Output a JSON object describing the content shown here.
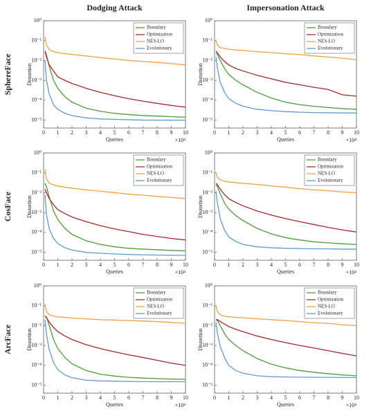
{
  "column_titles": [
    "Dodging Attack",
    "Impersonation Attack"
  ],
  "row_labels": [
    "SphereFace",
    "CosFace",
    "ArcFace"
  ],
  "chart_data": [
    {
      "type": "line",
      "log_y": true,
      "legend": "upper right",
      "x_label": "Queries",
      "y_label": "Distortion",
      "x_multiplier": "×10⁴",
      "xlim": [
        0,
        10
      ],
      "xticks": [
        0,
        1,
        2,
        3,
        4,
        5,
        6,
        7,
        8,
        9,
        10
      ],
      "ylim": [
        4e-06,
        1
      ],
      "yticks": [
        {
          "value": 1,
          "label": "10⁰"
        },
        {
          "value": 0.1,
          "label": "10⁻¹"
        },
        {
          "value": 0.01,
          "label": "10⁻²"
        },
        {
          "value": 0.001,
          "label": "10⁻³"
        },
        {
          "value": 0.0001,
          "label": "10⁻⁴"
        },
        {
          "value": 1e-05,
          "label": "10⁻⁵"
        }
      ],
      "x": [
        0.1,
        0.2,
        0.4,
        0.7,
        1,
        1.5,
        2,
        3,
        4,
        5,
        6,
        7,
        8,
        9,
        10
      ],
      "series": [
        {
          "name": "Boundary",
          "color": "#4e9a3a",
          "values": [
            0.03,
            0.02,
            0.005,
            0.001,
            0.0004,
            0.00015,
            8e-05,
            4e-05,
            2.8e-05,
            2.2e-05,
            1.9e-05,
            1.7e-05,
            1.6e-05,
            1.5e-05,
            1.4e-05
          ]
        },
        {
          "name": "Optimization",
          "color": "#a3282b",
          "values": [
            0.03,
            0.015,
            0.006,
            0.003,
            0.0015,
            0.001,
            0.0007,
            0.0004,
            0.00025,
            0.00017,
            0.00012,
            9e-05,
            7e-05,
            5.5e-05,
            4.5e-05
          ]
        },
        {
          "name": "NES-LO",
          "color": "#f0a040",
          "values": [
            0.15,
            0.06,
            0.035,
            0.028,
            0.025,
            0.022,
            0.02,
            0.017,
            0.014,
            0.012,
            0.01,
            0.009,
            0.008,
            0.007,
            0.006
          ]
        },
        {
          "name": "Evolutionary",
          "color": "#5b9bd5",
          "values": [
            0.01,
            0.001,
            0.0002,
            6e-05,
            3.5e-05,
            2.2e-05,
            1.7e-05,
            1.3e-05,
            1.15e-05,
            1.1e-05,
            1.05e-05,
            1e-05,
            1e-05,
            1e-05,
            1e-05
          ]
        }
      ]
    },
    {
      "type": "line",
      "log_y": true,
      "legend": "upper right",
      "x_label": "Queries",
      "y_label": "Distortion",
      "x_multiplier": "×10⁴",
      "xlim": [
        0,
        10
      ],
      "xticks": [
        0,
        1,
        2,
        3,
        4,
        5,
        6,
        7,
        8,
        9,
        10
      ],
      "ylim": [
        4e-06,
        1
      ],
      "yticks": [
        {
          "value": 1,
          "label": "10⁰"
        },
        {
          "value": 0.1,
          "label": "10⁻¹"
        },
        {
          "value": 0.01,
          "label": "10⁻²"
        },
        {
          "value": 0.001,
          "label": "10⁻³"
        },
        {
          "value": 0.0001,
          "label": "10⁻⁴"
        },
        {
          "value": 1e-05,
          "label": "10⁻⁵"
        }
      ],
      "x": [
        0.1,
        0.2,
        0.4,
        0.7,
        1,
        1.5,
        2,
        3,
        4,
        5,
        6,
        7,
        8,
        9,
        10
      ],
      "series": [
        {
          "name": "Boundary",
          "color": "#4e9a3a",
          "values": [
            0.025,
            0.02,
            0.01,
            0.004,
            0.002,
            0.001,
            0.0006,
            0.00025,
            0.00013,
            8e-05,
            6e-05,
            5e-05,
            4.3e-05,
            3.8e-05,
            3.5e-05
          ]
        },
        {
          "name": "Optimization",
          "color": "#a3282b",
          "values": [
            0.03,
            0.025,
            0.015,
            0.009,
            0.006,
            0.004,
            0.003,
            0.0018,
            0.0012,
            0.0008,
            0.0006,
            0.00045,
            0.00035,
            0.00019,
            0.00016
          ]
        },
        {
          "name": "NES-LO",
          "color": "#f0a040",
          "values": [
            0.1,
            0.06,
            0.045,
            0.04,
            0.037,
            0.034,
            0.032,
            0.028,
            0.025,
            0.022,
            0.02,
            0.017,
            0.015,
            0.013,
            0.011
          ]
        },
        {
          "name": "Evolutionary",
          "color": "#5b9bd5",
          "values": [
            0.015,
            0.004,
            0.0008,
            0.00025,
            0.00012,
            7e-05,
            5e-05,
            3.5e-05,
            3e-05,
            2.7e-05,
            2.5e-05,
            2.4e-05,
            2.35e-05,
            2.3e-05,
            2.3e-05
          ]
        }
      ]
    },
    {
      "type": "line",
      "log_y": true,
      "legend": "upper right",
      "x_label": "Queries",
      "y_label": "Distortion",
      "x_multiplier": "×10⁴",
      "xlim": [
        0,
        10
      ],
      "xticks": [
        0,
        1,
        2,
        3,
        4,
        5,
        6,
        7,
        8,
        9,
        10
      ],
      "ylim": [
        4e-06,
        1
      ],
      "yticks": [
        {
          "value": 1,
          "label": "10⁰"
        },
        {
          "value": 0.1,
          "label": "10⁻¹"
        },
        {
          "value": 0.01,
          "label": "10⁻²"
        },
        {
          "value": 0.001,
          "label": "10⁻³"
        },
        {
          "value": 0.0001,
          "label": "10⁻⁴"
        },
        {
          "value": 1e-05,
          "label": "10⁻⁵"
        }
      ],
      "x": [
        0.1,
        0.2,
        0.4,
        0.7,
        1,
        1.5,
        2,
        3,
        4,
        5,
        6,
        7,
        8,
        9,
        10
      ],
      "series": [
        {
          "name": "Boundary",
          "color": "#4e9a3a",
          "values": [
            0.03,
            0.02,
            0.006,
            0.0012,
            0.00045,
            0.00016,
            8e-05,
            3.8e-05,
            2.5e-05,
            1.9e-05,
            1.6e-05,
            1.45e-05,
            1.35e-05,
            1.25e-05,
            1.2e-05
          ]
        },
        {
          "name": "Optimization",
          "color": "#a3282b",
          "values": [
            0.015,
            0.01,
            0.005,
            0.0025,
            0.0014,
            0.0009,
            0.0006,
            0.00035,
            0.00022,
            0.00015,
            0.00011,
            8e-05,
            6.3e-05,
            5e-05,
            4.2e-05
          ]
        },
        {
          "name": "NES-LO",
          "color": "#f0a040",
          "values": [
            0.15,
            0.05,
            0.03,
            0.025,
            0.022,
            0.019,
            0.017,
            0.014,
            0.012,
            0.01,
            0.0085,
            0.0075,
            0.0065,
            0.0058,
            0.005
          ]
        },
        {
          "name": "Evolutionary",
          "color": "#5b9bd5",
          "values": [
            0.008,
            0.0008,
            0.00015,
            5e-05,
            2.8e-05,
            1.7e-05,
            1.3e-05,
            1e-05,
            9e-06,
            8.3e-06,
            7.8e-06,
            7.5e-06,
            7.3e-06,
            7.2e-06,
            7.1e-06
          ]
        }
      ]
    },
    {
      "type": "line",
      "log_y": true,
      "legend": "upper right",
      "x_label": "Queries",
      "y_label": "Distortion",
      "x_multiplier": "×10⁴",
      "xlim": [
        0,
        10
      ],
      "xticks": [
        0,
        1,
        2,
        3,
        4,
        5,
        6,
        7,
        8,
        9,
        10
      ],
      "ylim": [
        4e-06,
        1
      ],
      "yticks": [
        {
          "value": 1,
          "label": "10⁰"
        },
        {
          "value": 0.1,
          "label": "10⁻¹"
        },
        {
          "value": 0.01,
          "label": "10⁻²"
        },
        {
          "value": 0.001,
          "label": "10⁻³"
        },
        {
          "value": 0.0001,
          "label": "10⁻⁴"
        },
        {
          "value": 1e-05,
          "label": "10⁻⁵"
        }
      ],
      "x": [
        0.1,
        0.2,
        0.4,
        0.7,
        1,
        1.5,
        2,
        3,
        4,
        5,
        6,
        7,
        8,
        9,
        10
      ],
      "series": [
        {
          "name": "Boundary",
          "color": "#4e9a3a",
          "values": [
            0.025,
            0.02,
            0.009,
            0.003,
            0.0015,
            0.0007,
            0.0004,
            0.00016,
            8.5e-05,
            5.5e-05,
            4.2e-05,
            3.4e-05,
            3e-05,
            2.7e-05,
            2.5e-05
          ]
        },
        {
          "name": "Optimization",
          "color": "#a3282b",
          "values": [
            0.03,
            0.025,
            0.015,
            0.008,
            0.005,
            0.0032,
            0.0022,
            0.0012,
            0.00075,
            0.0005,
            0.00035,
            0.00025,
            0.00018,
            0.000135,
            0.000105
          ]
        },
        {
          "name": "NES-LO",
          "color": "#f0a040",
          "values": [
            0.1,
            0.06,
            0.045,
            0.038,
            0.035,
            0.032,
            0.03,
            0.026,
            0.022,
            0.019,
            0.016,
            0.014,
            0.0125,
            0.011,
            0.01
          ]
        },
        {
          "name": "Evolutionary",
          "color": "#5b9bd5",
          "values": [
            0.012,
            0.003,
            0.0005,
            0.00013,
            6e-05,
            3.5e-05,
            2.5e-05,
            1.9e-05,
            1.7e-05,
            1.6e-05,
            1.55e-05,
            1.5e-05,
            1.5e-05,
            1.45e-05,
            1.45e-05
          ]
        }
      ]
    },
    {
      "type": "line",
      "log_y": true,
      "legend": "upper right",
      "x_label": "Queries",
      "y_label": "Distortion",
      "x_multiplier": "×10⁴",
      "xlim": [
        0,
        10
      ],
      "xticks": [
        0,
        1,
        2,
        3,
        4,
        5,
        6,
        7,
        8,
        9,
        10
      ],
      "ylim": [
        4e-06,
        1
      ],
      "yticks": [
        {
          "value": 1,
          "label": "10⁰"
        },
        {
          "value": 0.1,
          "label": "10⁻¹"
        },
        {
          "value": 0.01,
          "label": "10⁻²"
        },
        {
          "value": 0.001,
          "label": "10⁻³"
        },
        {
          "value": 0.0001,
          "label": "10⁻⁴"
        },
        {
          "value": 1e-05,
          "label": "10⁻⁵"
        }
      ],
      "x": [
        0.1,
        0.2,
        0.4,
        0.7,
        1,
        1.5,
        2,
        3,
        4,
        5,
        6,
        7,
        8,
        9,
        10
      ],
      "series": [
        {
          "name": "Boundary",
          "color": "#4e9a3a",
          "values": [
            0.03,
            0.028,
            0.01,
            0.002,
            0.0007,
            0.00025,
            0.00012,
            5.5e-05,
            3.6e-05,
            2.9e-05,
            2.5e-05,
            2.3e-05,
            2.15e-05,
            2.05e-05,
            2e-05
          ]
        },
        {
          "name": "Optimization",
          "color": "#a3282b",
          "values": [
            0.03,
            0.025,
            0.015,
            0.008,
            0.005,
            0.003,
            0.002,
            0.0011,
            0.0007,
            0.00048,
            0.00034,
            0.00025,
            0.00018,
            0.00013,
            0.0001
          ]
        },
        {
          "name": "NES-LO",
          "color": "#f0a040",
          "values": [
            0.12,
            0.05,
            0.035,
            0.03,
            0.028,
            0.026,
            0.024,
            0.022,
            0.02,
            0.019,
            0.018,
            0.017,
            0.016,
            0.0145,
            0.013
          ]
        },
        {
          "name": "Evolutionary",
          "color": "#5b9bd5",
          "values": [
            0.02,
            0.004,
            0.0006,
            0.00014,
            6e-05,
            3.3e-05,
            2.4e-05,
            1.8e-05,
            1.65e-05,
            1.6e-05,
            1.55e-05,
            1.52e-05,
            1.5e-05,
            1.5e-05,
            1.5e-05
          ]
        }
      ]
    },
    {
      "type": "line",
      "log_y": true,
      "legend": "upper right",
      "x_label": "Queries",
      "y_label": "Distortion",
      "x_multiplier": "×10⁴",
      "xlim": [
        0,
        10
      ],
      "xticks": [
        0,
        1,
        2,
        3,
        4,
        5,
        6,
        7,
        8,
        9,
        10
      ],
      "ylim": [
        4e-06,
        1
      ],
      "yticks": [
        {
          "value": 1,
          "label": "10⁰"
        },
        {
          "value": 0.1,
          "label": "10⁻¹"
        },
        {
          "value": 0.01,
          "label": "10⁻²"
        },
        {
          "value": 0.001,
          "label": "10⁻³"
        },
        {
          "value": 0.0001,
          "label": "10⁻⁴"
        },
        {
          "value": 1e-05,
          "label": "10⁻⁵"
        }
      ],
      "x": [
        0.1,
        0.2,
        0.4,
        0.7,
        1,
        1.5,
        2,
        3,
        4,
        5,
        6,
        7,
        8,
        9,
        10
      ],
      "series": [
        {
          "name": "Boundary",
          "color": "#4e9a3a",
          "values": [
            0.02,
            0.018,
            0.01,
            0.004,
            0.002,
            0.001,
            0.00055,
            0.00022,
            0.000115,
            7.5e-05,
            5.5e-05,
            4.5e-05,
            3.8e-05,
            3.3e-05,
            3e-05
          ]
        },
        {
          "name": "Optimization",
          "color": "#a3282b",
          "values": [
            0.02,
            0.02,
            0.016,
            0.012,
            0.009,
            0.0065,
            0.005,
            0.003,
            0.002,
            0.0014,
            0.001,
            0.00075,
            0.00055,
            0.0004,
            0.0003
          ]
        },
        {
          "name": "NES-LO",
          "color": "#f0a040",
          "values": [
            0.1,
            0.05,
            0.035,
            0.03,
            0.028,
            0.026,
            0.025,
            0.022,
            0.02,
            0.018,
            0.016,
            0.014,
            0.013,
            0.011,
            0.01
          ]
        },
        {
          "name": "Evolutionary",
          "color": "#5b9bd5",
          "values": [
            0.015,
            0.004,
            0.0009,
            0.00025,
            0.0001,
            5.5e-05,
            4e-05,
            3e-05,
            2.7e-05,
            2.6e-05,
            2.55e-05,
            2.5e-05,
            2.5e-05,
            2.45e-05,
            2.45e-05
          ]
        }
      ]
    }
  ]
}
